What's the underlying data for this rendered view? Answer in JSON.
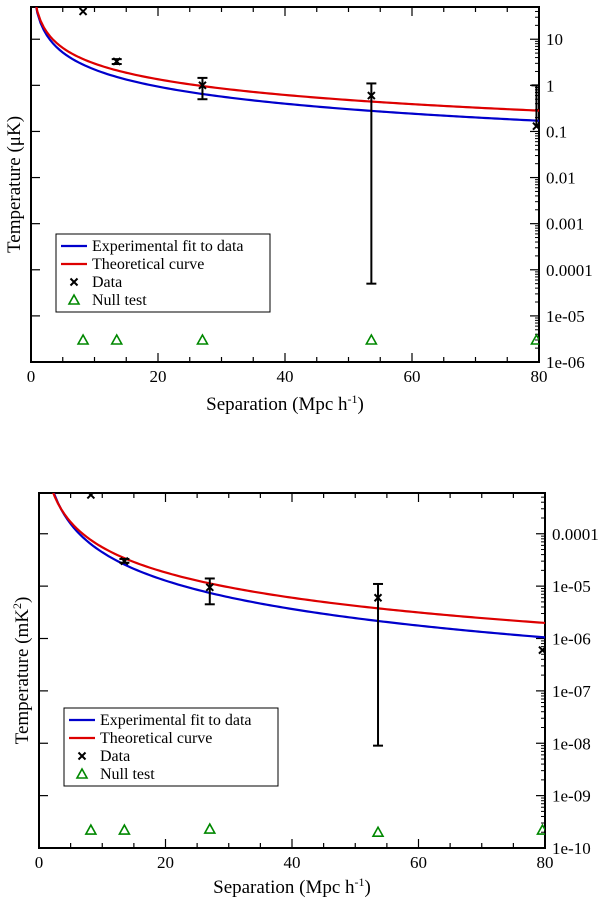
{
  "chart_data": [
    {
      "type": "line",
      "xlabel": "Separation (Mpc h",
      "xlabel_sup": "-1",
      "xlabel_tail": ")",
      "ylabel": "Temperature  (μK)",
      "xlim": [
        0,
        80
      ],
      "ylim_log": [
        1e-06,
        50
      ],
      "x_ticks": [
        0,
        20,
        40,
        60,
        80
      ],
      "x_tick_labels": [
        "0",
        "20",
        "40",
        "60",
        "80"
      ],
      "y_ticks": [
        10,
        1,
        0.1,
        0.01,
        0.001,
        0.0001,
        1e-05,
        1e-06
      ],
      "y_tick_labels": [
        "10",
        "1",
        "0.1",
        "0.01",
        "0.001",
        "0.0001",
        "1e-05",
        "1e-06"
      ],
      "series": [
        {
          "name": "Experimental fit to data",
          "kind": "line",
          "color": "#0000cc",
          "amplitude": 37.4,
          "slope": -1.23
        },
        {
          "name": "Theoretical curve",
          "kind": "line",
          "color": "#dd0000",
          "amplitude": 40.0,
          "slope": -1.13
        },
        {
          "name": "Data",
          "kind": "marker_x",
          "color": "#000000",
          "x": [
            8.2,
            13.5,
            27.0,
            53.6,
            79.6
          ],
          "y": [
            40,
            3.3,
            1.0,
            0.6,
            0.13
          ],
          "err_low": [
            null,
            2.9,
            0.5,
            5e-05,
            null
          ],
          "err_high": [
            null,
            3.7,
            1.45,
            1.1,
            1.0
          ]
        },
        {
          "name": "Null test",
          "kind": "marker_triangle",
          "color": "#008800",
          "x": [
            8.2,
            13.5,
            27.0,
            53.6,
            79.6
          ],
          "y": [
            3e-06,
            3e-06,
            3e-06,
            3e-06,
            3e-06
          ]
        }
      ],
      "legend": {
        "position": "lower-left",
        "entries": [
          "Experimental fit to data",
          "Theoretical curve",
          "Data",
          "Null test"
        ]
      }
    },
    {
      "type": "line",
      "xlabel": "Separation  (Mpc h",
      "xlabel_sup": "-1",
      "xlabel_tail": ")",
      "ylabel": "Temperature  (mK",
      "ylabel_sup": "2",
      "ylabel_tail": ")",
      "xlim": [
        0,
        80
      ],
      "ylim_log": [
        1e-10,
        0.0006
      ],
      "x_ticks": [
        0,
        20,
        40,
        60,
        80
      ],
      "x_tick_labels": [
        "0",
        "20",
        "40",
        "60",
        "80"
      ],
      "y_ticks": [
        0.0001,
        1e-05,
        1e-06,
        1e-07,
        1e-08,
        1e-09,
        1e-10
      ],
      "y_tick_labels": [
        "0.0001",
        "1e-05",
        "1e-06",
        "1e-07",
        "1e-08",
        "1e-09",
        "1e-10"
      ],
      "series": [
        {
          "name": "Experimental fit to data",
          "kind": "line",
          "color": "#0000cc",
          "amplitude": 0.0028,
          "slope": -1.8
        },
        {
          "name": "Theoretical curve",
          "kind": "line",
          "color": "#dd0000",
          "amplitude": 0.0022,
          "slope": -1.6
        },
        {
          "name": "Data",
          "kind": "marker_x",
          "color": "#000000",
          "x": [
            8.2,
            13.5,
            27.0,
            53.6,
            79.6
          ],
          "y": [
            0.00055,
            3e-05,
            9.5e-06,
            6e-06,
            6e-07
          ],
          "err_low": [
            null,
            2.8e-05,
            4.5e-06,
            9e-09,
            null
          ],
          "err_high": [
            null,
            3.3e-05,
            1.4e-05,
            1.1e-05,
            null
          ]
        },
        {
          "name": "Null test",
          "kind": "marker_triangle",
          "color": "#008800",
          "x": [
            8.2,
            13.5,
            27.0,
            53.6,
            79.6
          ],
          "y": [
            2.2e-10,
            2.2e-10,
            2.3e-10,
            2e-10,
            2.2e-10
          ]
        }
      ],
      "legend": {
        "position": "lower-left",
        "entries": [
          "Experimental fit to data",
          "Theoretical curve",
          "Data",
          "Null test"
        ]
      }
    }
  ]
}
